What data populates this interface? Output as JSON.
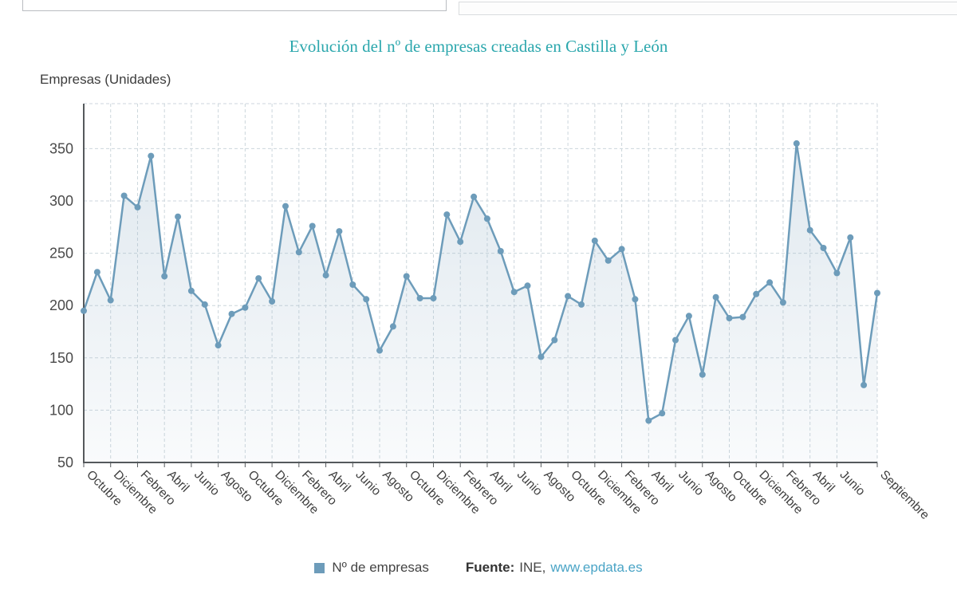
{
  "header": {
    "title": "Evolución del nº de empresas creadas en Castilla y León"
  },
  "legend": {
    "series_label": "Nº de empresas",
    "source_label": "Fuente:",
    "source_text": "INE,",
    "source_link": "www.epdata.es"
  },
  "colors": {
    "title": "#2ba7ad",
    "series": "#6d9cba",
    "link": "#4aa4c6",
    "grid": "#ccd6dc",
    "axis": "#55595c"
  },
  "chart_data": {
    "type": "area",
    "title": "Evolución del nº de empresas creadas en Castilla y León",
    "ylabel": "Empresas (Unidades)",
    "ylim": [
      50,
      393
    ],
    "y_ticks": [
      50,
      100,
      150,
      200,
      250,
      300,
      350
    ],
    "grid": "dashed",
    "legend_position": "bottom",
    "x_ticks": [
      {
        "i": 0,
        "label": "Octubre"
      },
      {
        "i": 2,
        "label": "Diciembre"
      },
      {
        "i": 4,
        "label": "Febrero"
      },
      {
        "i": 6,
        "label": "Abril"
      },
      {
        "i": 8,
        "label": "Junio"
      },
      {
        "i": 10,
        "label": "Agosto"
      },
      {
        "i": 12,
        "label": "Octubre"
      },
      {
        "i": 14,
        "label": "Diciembre"
      },
      {
        "i": 16,
        "label": "Febrero"
      },
      {
        "i": 18,
        "label": "Abril"
      },
      {
        "i": 20,
        "label": "Junio"
      },
      {
        "i": 22,
        "label": "Agosto"
      },
      {
        "i": 24,
        "label": "Octubre"
      },
      {
        "i": 26,
        "label": "Diciembre"
      },
      {
        "i": 28,
        "label": "Febrero"
      },
      {
        "i": 30,
        "label": "Abril"
      },
      {
        "i": 32,
        "label": "Junio"
      },
      {
        "i": 34,
        "label": "Agosto"
      },
      {
        "i": 36,
        "label": "Octubre"
      },
      {
        "i": 38,
        "label": "Diciembre"
      },
      {
        "i": 40,
        "label": "Febrero"
      },
      {
        "i": 42,
        "label": "Abril"
      },
      {
        "i": 44,
        "label": "Junio"
      },
      {
        "i": 46,
        "label": "Agosto"
      },
      {
        "i": 48,
        "label": "Octubre"
      },
      {
        "i": 50,
        "label": "Diciembre"
      },
      {
        "i": 52,
        "label": "Febrero"
      },
      {
        "i": 54,
        "label": "Abril"
      },
      {
        "i": 56,
        "label": "Junio"
      },
      {
        "i": 59,
        "label": "Septiembre"
      }
    ],
    "series": [
      {
        "name": "Nº de empresas",
        "values": [
          195,
          232,
          205,
          305,
          294,
          343,
          228,
          285,
          214,
          201,
          162,
          192,
          198,
          226,
          204,
          295,
          251,
          276,
          229,
          271,
          220,
          206,
          157,
          180,
          228,
          207,
          207,
          287,
          261,
          304,
          283,
          252,
          213,
          219,
          151,
          167,
          209,
          201,
          262,
          243,
          254,
          206,
          90,
          97,
          167,
          190,
          134,
          208,
          188,
          189,
          211,
          222,
          203,
          355,
          272,
          255,
          231,
          265,
          124,
          212
        ]
      }
    ]
  }
}
